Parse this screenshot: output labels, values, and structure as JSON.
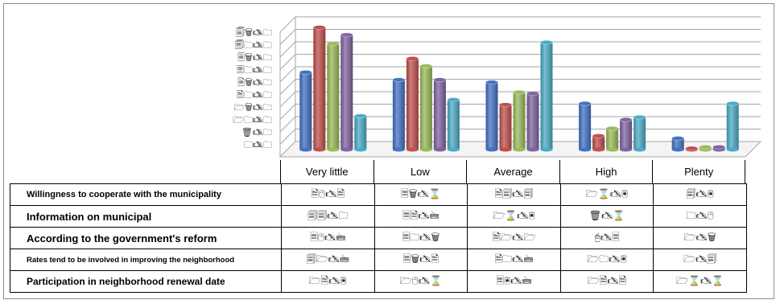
{
  "chart_data": {
    "type": "bar",
    "categories": [
      "Very little",
      "Low",
      "Average",
      "High",
      "Plenty"
    ],
    "y_ticks": [
      "🗐🗑🖎🗀",
      "🗐🗀🖎🗀",
      "🗏🗑🖎🗀",
      "🗏🗀🖎🗀",
      "🗎🗑🖎🗀",
      "🗎🗀🖎🗀",
      "🗁🗑🖎🗀",
      "🗁🗀🖎🗀",
      "🗑🖎🗀",
      "🗀🖎🗀"
    ],
    "ylim": [
      0,
      10
    ],
    "grid": true,
    "series_colors": [
      "#4472c4",
      "#c0504d",
      "#9bbb59",
      "#8064a2",
      "#4bacc6"
    ],
    "series": [
      {
        "values": [
          6.2,
          5.6,
          5.4,
          3.7,
          0.9
        ]
      },
      {
        "values": [
          9.8,
          7.3,
          3.6,
          1.1,
          0.1
        ]
      },
      {
        "values": [
          8.5,
          6.7,
          4.6,
          1.7,
          0.2
        ]
      },
      {
        "values": [
          9.2,
          5.6,
          4.5,
          2.4,
          0.2
        ]
      },
      {
        "values": [
          2.7,
          4.0,
          8.6,
          2.6,
          3.7
        ]
      }
    ],
    "table_rows": [
      {
        "label": "Willingness to cooperate with the municipality",
        "cells": [
          "🗎🖰🖎🗎",
          "🗏🗑🖎⌛",
          "🗎🗐🖎🗐",
          "🗁⌛🖎🖲",
          "🗐🖎🖲"
        ]
      },
      {
        "label": "Information on municipal",
        "cells": [
          "🗐🗐🖎🗀",
          "🗏🗎🖎🖮",
          "🗁⌛🖎🖲",
          "🗑🖎⌛",
          "🗀🖎🖰"
        ]
      },
      {
        "label": "According to the government's reform",
        "cells": [
          "🗏🖰🖎🖮",
          "🗏🗀🖎🗑",
          "🗎🗁🖎🗁",
          "🖰🖎🗏",
          "🗁🖎🗑"
        ]
      },
      {
        "label": "Rates tend to be involved in improving the neighborhood",
        "cells": [
          "🗐🗁🖎🖮",
          "🗏🗑🖎🗎",
          "🗎🗀🖎🖮",
          "🗁🗀🖎🖲",
          "🗁🖎🗐"
        ]
      },
      {
        "label": "Participation in neighborhood renewal date",
        "cells": [
          "🗁🗎🖎🖲",
          "🗁🖰🖎⌛",
          "🗏🖲🖎🖮",
          "🗁🗎🖎🗎",
          "🗁⌛🖎⌛"
        ]
      }
    ]
  }
}
